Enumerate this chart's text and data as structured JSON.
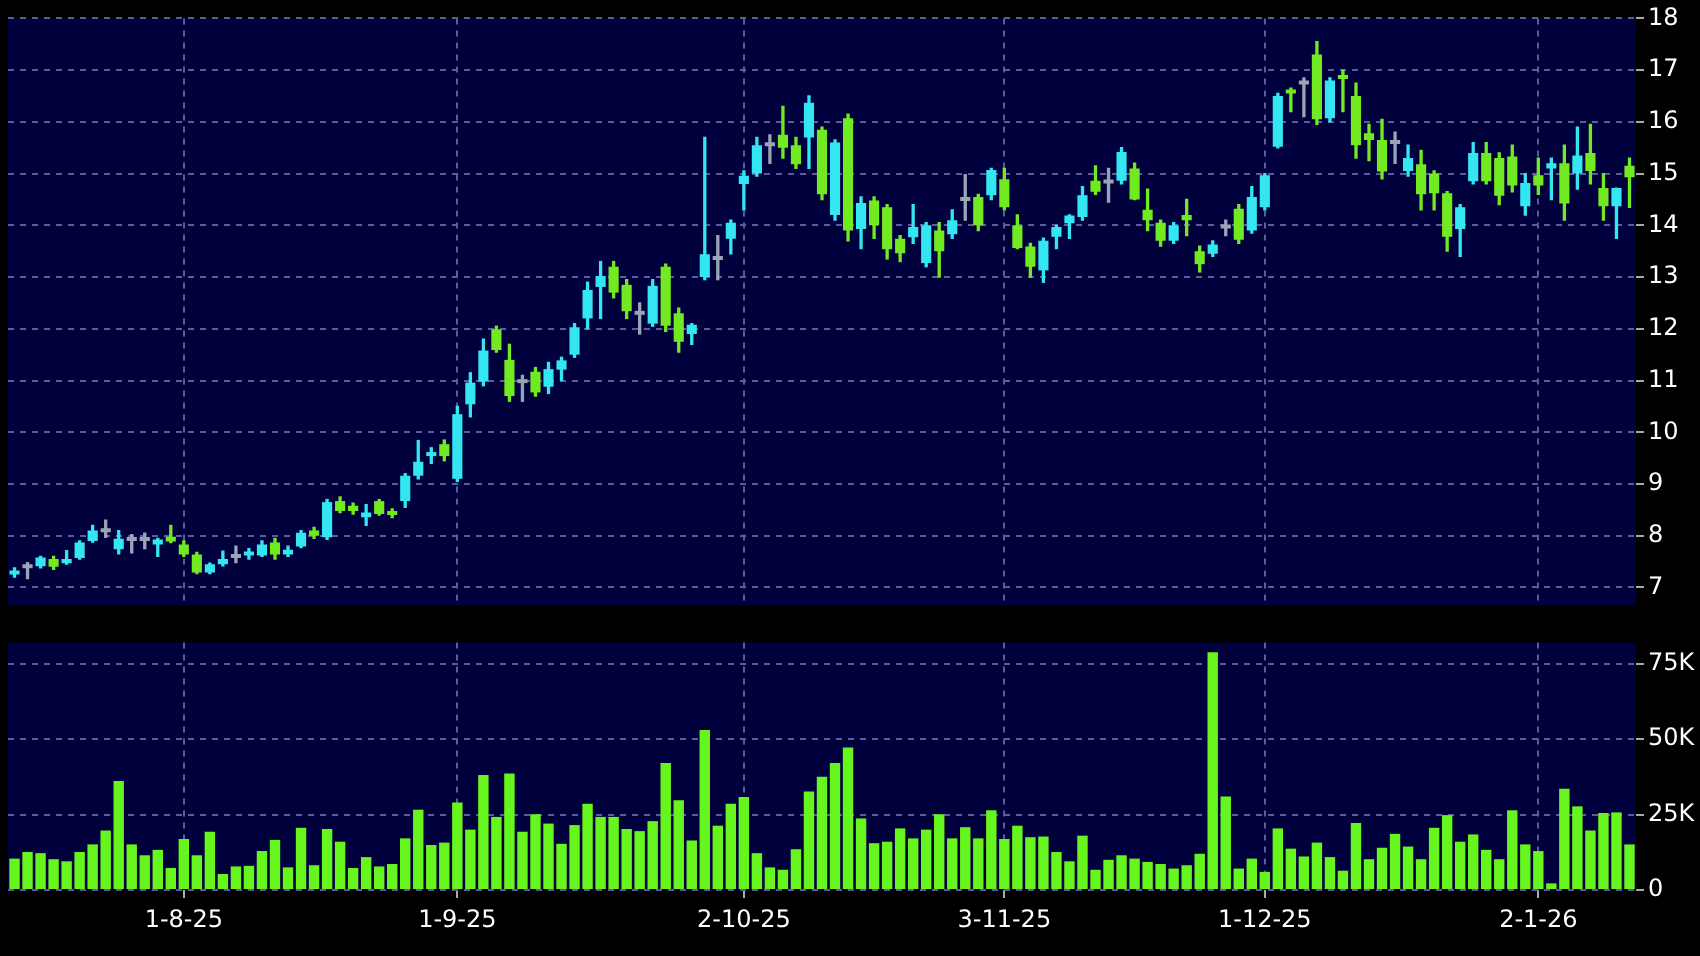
{
  "chart_data": [
    {
      "type": "candlestick",
      "categories": [
        null,
        null,
        null,
        null,
        null,
        null,
        null,
        null,
        null,
        null,
        null,
        null,
        null,
        null,
        null,
        null,
        null,
        null,
        null,
        null,
        null,
        null,
        null,
        null,
        null,
        null,
        null,
        null,
        null,
        null,
        null,
        null,
        null,
        null,
        null,
        null,
        null,
        null,
        null,
        null,
        null,
        null,
        null,
        null,
        null,
        null,
        null,
        null,
        null,
        null,
        null,
        null,
        null,
        null,
        null,
        null,
        null,
        null,
        null,
        null,
        null,
        null,
        null,
        null,
        null,
        null,
        null,
        null,
        null,
        null,
        null,
        null,
        null,
        null,
        null,
        null,
        null,
        null,
        null,
        null,
        null,
        null,
        null,
        null,
        null,
        null,
        null,
        null,
        null,
        null,
        null,
        null,
        null,
        null,
        null,
        null,
        null,
        null,
        null,
        null,
        null,
        null,
        null,
        null,
        null,
        null,
        null,
        null,
        null,
        null,
        null,
        null,
        null,
        null,
        null,
        null,
        null,
        null,
        null,
        null,
        null,
        null,
        null,
        null,
        null
      ],
      "ohlc": [
        [
          7.25,
          7.38,
          7.2,
          7.33
        ],
        [
          7.4,
          7.48,
          7.17,
          7.37
        ],
        [
          7.41,
          7.6,
          7.38,
          7.58
        ],
        [
          7.55,
          7.6,
          7.35,
          7.4
        ],
        [
          7.47,
          7.71,
          7.45,
          7.55
        ],
        [
          7.57,
          7.9,
          7.55,
          7.87
        ],
        [
          7.9,
          8.2,
          7.88,
          8.1
        ],
        [
          8.1,
          8.3,
          7.97,
          8.07
        ],
        [
          7.74,
          8.1,
          7.65,
          7.94
        ],
        [
          7.93,
          8.02,
          7.67,
          7.9
        ],
        [
          7.93,
          8.05,
          7.75,
          7.9
        ],
        [
          7.83,
          7.95,
          7.6,
          7.93
        ],
        [
          7.98,
          8.2,
          7.87,
          7.89
        ],
        [
          7.83,
          7.9,
          7.6,
          7.64
        ],
        [
          7.64,
          7.68,
          7.27,
          7.29
        ],
        [
          7.29,
          7.47,
          7.27,
          7.45
        ],
        [
          7.45,
          7.7,
          7.42,
          7.55
        ],
        [
          7.6,
          7.8,
          7.48,
          7.57
        ],
        [
          7.62,
          7.75,
          7.55,
          7.67
        ],
        [
          7.62,
          7.9,
          7.6,
          7.83
        ],
        [
          7.87,
          7.95,
          7.55,
          7.64
        ],
        [
          7.64,
          7.8,
          7.6,
          7.73
        ],
        [
          7.79,
          8.1,
          7.77,
          8.06
        ],
        [
          8.1,
          8.16,
          7.95,
          8.0
        ],
        [
          7.97,
          8.7,
          7.93,
          8.65
        ],
        [
          8.67,
          8.75,
          8.45,
          8.48
        ],
        [
          8.58,
          8.63,
          8.42,
          8.48
        ],
        [
          8.36,
          8.6,
          8.2,
          8.45
        ],
        [
          8.67,
          8.7,
          8.4,
          8.42
        ],
        [
          8.48,
          8.52,
          8.35,
          8.4
        ],
        [
          8.67,
          9.2,
          8.55,
          9.16
        ],
        [
          9.16,
          9.84,
          9.1,
          9.43
        ],
        [
          9.54,
          9.7,
          9.4,
          9.6
        ],
        [
          9.77,
          9.85,
          9.45,
          9.54
        ],
        [
          9.1,
          10.5,
          9.05,
          10.35
        ],
        [
          10.54,
          11.15,
          10.3,
          10.96
        ],
        [
          10.98,
          11.8,
          10.9,
          11.58
        ],
        [
          11.99,
          12.05,
          11.55,
          11.59
        ],
        [
          11.4,
          11.7,
          10.6,
          10.7
        ],
        [
          10.98,
          11.1,
          10.6,
          10.95
        ],
        [
          11.17,
          11.25,
          10.7,
          10.77
        ],
        [
          10.88,
          11.35,
          10.75,
          11.22
        ],
        [
          11.21,
          11.45,
          11.0,
          11.39
        ],
        [
          11.5,
          12.1,
          11.45,
          12.03
        ],
        [
          12.2,
          12.9,
          12.0,
          12.75
        ],
        [
          12.81,
          13.3,
          12.2,
          13.02
        ],
        [
          13.2,
          13.3,
          12.6,
          12.7
        ],
        [
          12.85,
          12.95,
          12.2,
          12.34
        ],
        [
          12.3,
          12.5,
          11.9,
          12.27
        ],
        [
          12.1,
          12.95,
          12.05,
          12.83
        ],
        [
          13.2,
          13.25,
          11.95,
          12.06
        ],
        [
          12.3,
          12.4,
          11.55,
          11.75
        ],
        [
          11.9,
          12.1,
          11.7,
          12.08
        ],
        [
          13.0,
          15.7,
          12.95,
          13.44
        ],
        [
          13.36,
          13.8,
          12.95,
          13.33
        ],
        [
          13.74,
          14.1,
          13.45,
          14.05
        ],
        [
          14.8,
          15.05,
          14.3,
          14.96
        ],
        [
          15.0,
          15.7,
          14.95,
          15.55
        ],
        [
          15.56,
          15.75,
          15.2,
          15.53
        ],
        [
          15.75,
          16.3,
          15.3,
          15.5
        ],
        [
          15.55,
          15.7,
          15.1,
          15.18
        ],
        [
          15.7,
          16.5,
          15.1,
          16.37
        ],
        [
          15.85,
          15.9,
          14.5,
          14.6
        ],
        [
          14.2,
          15.65,
          14.1,
          15.6
        ],
        [
          16.07,
          16.15,
          13.7,
          13.9
        ],
        [
          13.93,
          14.55,
          13.55,
          14.43
        ],
        [
          14.48,
          14.55,
          13.75,
          14.0
        ],
        [
          14.35,
          14.4,
          13.35,
          13.54
        ],
        [
          13.74,
          13.8,
          13.3,
          13.46
        ],
        [
          13.77,
          14.4,
          13.65,
          13.97
        ],
        [
          13.27,
          14.05,
          13.2,
          14.0
        ],
        [
          13.9,
          14.05,
          13.0,
          13.5
        ],
        [
          13.83,
          14.3,
          13.75,
          14.1
        ],
        [
          14.5,
          14.98,
          14.1,
          14.47
        ],
        [
          14.55,
          14.6,
          13.9,
          14.0
        ],
        [
          14.58,
          15.1,
          14.5,
          15.07
        ],
        [
          14.89,
          15.1,
          14.3,
          14.35
        ],
        [
          14.0,
          14.2,
          13.55,
          13.56
        ],
        [
          13.59,
          13.65,
          13.0,
          13.2
        ],
        [
          13.13,
          13.75,
          12.9,
          13.7
        ],
        [
          13.78,
          14.0,
          13.55,
          13.97
        ],
        [
          14.04,
          14.2,
          13.75,
          14.19
        ],
        [
          14.16,
          14.75,
          14.1,
          14.58
        ],
        [
          14.86,
          15.15,
          14.6,
          14.65
        ],
        [
          14.84,
          15.1,
          14.45,
          14.81
        ],
        [
          14.86,
          15.5,
          14.8,
          15.42
        ],
        [
          15.1,
          15.2,
          14.5,
          14.5
        ],
        [
          14.3,
          14.7,
          13.9,
          14.1
        ],
        [
          14.05,
          14.1,
          13.6,
          13.7
        ],
        [
          13.7,
          14.05,
          13.65,
          14.0
        ],
        [
          14.2,
          14.5,
          13.8,
          14.1
        ],
        [
          13.5,
          13.6,
          13.1,
          13.25
        ],
        [
          13.45,
          13.7,
          13.4,
          13.63
        ],
        [
          13.97,
          14.1,
          13.8,
          13.94
        ],
        [
          14.32,
          14.4,
          13.65,
          13.72
        ],
        [
          13.9,
          14.75,
          13.85,
          14.55
        ],
        [
          14.35,
          15.0,
          14.3,
          14.97
        ],
        [
          15.52,
          16.55,
          15.5,
          16.5
        ],
        [
          16.62,
          16.65,
          16.2,
          16.55
        ],
        [
          16.75,
          16.85,
          16.1,
          16.72
        ],
        [
          17.3,
          17.55,
          15.95,
          16.05
        ],
        [
          16.07,
          16.85,
          16.0,
          16.8
        ],
        [
          16.9,
          17.0,
          16.2,
          16.83
        ],
        [
          16.5,
          16.75,
          15.3,
          15.55
        ],
        [
          15.78,
          15.95,
          15.25,
          15.65
        ],
        [
          15.65,
          16.05,
          14.9,
          15.04
        ],
        [
          15.6,
          15.8,
          15.2,
          15.57
        ],
        [
          15.05,
          15.55,
          14.95,
          15.3
        ],
        [
          15.18,
          15.45,
          14.3,
          14.6
        ],
        [
          15.0,
          15.05,
          14.3,
          14.62
        ],
        [
          14.62,
          14.65,
          13.5,
          13.78
        ],
        [
          13.93,
          14.4,
          13.4,
          14.35
        ],
        [
          14.85,
          15.6,
          14.8,
          15.4
        ],
        [
          15.4,
          15.6,
          14.8,
          14.85
        ],
        [
          15.3,
          15.4,
          14.4,
          14.57
        ],
        [
          15.33,
          15.55,
          14.65,
          14.77
        ],
        [
          14.37,
          15.0,
          14.2,
          14.82
        ],
        [
          14.97,
          15.3,
          14.6,
          14.77
        ],
        [
          15.1,
          15.3,
          14.5,
          15.2
        ],
        [
          15.2,
          15.55,
          14.1,
          14.42
        ],
        [
          15.0,
          15.9,
          14.7,
          15.35
        ],
        [
          15.4,
          15.95,
          14.8,
          15.05
        ],
        [
          14.72,
          15.0,
          14.1,
          14.37
        ],
        [
          14.37,
          14.72,
          13.75,
          14.72
        ],
        [
          15.15,
          15.3,
          14.35,
          14.93
        ]
      ],
      "colors": [
        "#33e6f2",
        "#9aa4b4",
        "#33e6f2",
        "#72ea22",
        "#33e6f2",
        "#33e6f2",
        "#33e6f2",
        "#9aa4b4",
        "#33e6f2",
        "#9aa4b4",
        "#9aa4b4",
        "#33e6f2",
        "#72ea22",
        "#72ea22",
        "#72ea22",
        "#33e6f2",
        "#33e6f2",
        "#9aa4b4",
        "#33e6f2",
        "#33e6f2",
        "#72ea22",
        "#33e6f2",
        "#33e6f2",
        "#72ea22",
        "#33e6f2",
        "#72ea22",
        "#72ea22",
        "#33e6f2",
        "#72ea22",
        "#72ea22",
        "#33e6f2",
        "#33e6f2",
        "#33e6f2",
        "#72ea22",
        "#33e6f2",
        "#33e6f2",
        "#33e6f2",
        "#72ea22",
        "#72ea22",
        "#9aa4b4",
        "#72ea22",
        "#33e6f2",
        "#33e6f2",
        "#33e6f2",
        "#33e6f2",
        "#33e6f2",
        "#72ea22",
        "#72ea22",
        "#9aa4b4",
        "#33e6f2",
        "#72ea22",
        "#72ea22",
        "#33e6f2",
        "#33e6f2",
        "#9aa4b4",
        "#33e6f2",
        "#33e6f2",
        "#33e6f2",
        "#9aa4b4",
        "#72ea22",
        "#72ea22",
        "#33e6f2",
        "#72ea22",
        "#33e6f2",
        "#72ea22",
        "#33e6f2",
        "#72ea22",
        "#72ea22",
        "#72ea22",
        "#33e6f2",
        "#33e6f2",
        "#72ea22",
        "#33e6f2",
        "#9aa4b4",
        "#72ea22",
        "#33e6f2",
        "#72ea22",
        "#72ea22",
        "#72ea22",
        "#33e6f2",
        "#33e6f2",
        "#33e6f2",
        "#33e6f2",
        "#72ea22",
        "#9aa4b4",
        "#33e6f2",
        "#72ea22",
        "#72ea22",
        "#72ea22",
        "#33e6f2",
        "#72ea22",
        "#72ea22",
        "#33e6f2",
        "#9aa4b4",
        "#72ea22",
        "#33e6f2",
        "#33e6f2",
        "#33e6f2",
        "#72ea22",
        "#9aa4b4",
        "#72ea22",
        "#33e6f2",
        "#72ea22",
        "#72ea22",
        "#72ea22",
        "#72ea22",
        "#9aa4b4",
        "#33e6f2",
        "#72ea22",
        "#72ea22",
        "#72ea22",
        "#33e6f2",
        "#33e6f2",
        "#72ea22",
        "#72ea22",
        "#72ea22",
        "#33e6f2",
        "#72ea22",
        "#33e6f2",
        "#72ea22",
        "#33e6f2",
        "#72ea22",
        "#72ea22",
        "#33e6f2",
        "#72ea22"
      ],
      "ylim": [
        6.65,
        18
      ],
      "yticks": [
        7,
        8,
        9,
        10,
        11,
        12,
        13,
        14,
        15,
        16,
        17,
        18
      ],
      "grid": true,
      "tick_labels": "y"
    },
    {
      "type": "bar",
      "categories": [
        null,
        null,
        null,
        null,
        null,
        null,
        null,
        null,
        null,
        null,
        null,
        null,
        null,
        "1-8-25",
        null,
        null,
        null,
        null,
        null,
        null,
        null,
        null,
        null,
        null,
        null,
        null,
        null,
        null,
        null,
        null,
        null,
        null,
        null,
        null,
        "1-9-25",
        null,
        null,
        null,
        null,
        null,
        null,
        null,
        null,
        null,
        null,
        null,
        null,
        null,
        null,
        null,
        null,
        null,
        null,
        null,
        null,
        null,
        "2-10-25",
        null,
        null,
        null,
        null,
        null,
        null,
        null,
        null,
        null,
        null,
        null,
        null,
        null,
        null,
        null,
        null,
        null,
        null,
        null,
        "3-11-25",
        null,
        null,
        null,
        null,
        null,
        null,
        null,
        null,
        null,
        null,
        null,
        null,
        null,
        null,
        null,
        null,
        null,
        null,
        null,
        "1-12-25",
        null,
        null,
        null,
        null,
        null,
        null,
        null,
        null,
        null,
        null,
        null,
        null,
        null,
        null,
        null,
        null,
        null,
        null,
        null,
        null,
        "2-1-26",
        null,
        null,
        null,
        null,
        null,
        null,
        null
      ],
      "values": [
        10400,
        12600,
        12200,
        10200,
        9500,
        12600,
        15100,
        19700,
        36100,
        15100,
        11500,
        13300,
        7300,
        16900,
        11500,
        19300,
        5300,
        7800,
        8000,
        12900,
        16600,
        7500,
        20600,
        8200,
        20200,
        16000,
        7300,
        10900,
        7800,
        8600,
        17100,
        26600,
        14900,
        15700,
        29000,
        20000,
        38100,
        24200,
        38600,
        19300,
        25100,
        22000,
        15300,
        21500,
        28600,
        24200,
        24200,
        20200,
        19500,
        22800,
        42100,
        29700,
        16400,
        53000,
        21300,
        28600,
        30800,
        12200,
        7500,
        6700,
        13500,
        32600,
        37500,
        42100,
        47200,
        23700,
        15500,
        16000,
        20400,
        17100,
        20000,
        25100,
        17100,
        20800,
        17100,
        26400,
        16900,
        21300,
        17500,
        17700,
        12600,
        9500,
        18000,
        6700,
        10000,
        11500,
        10400,
        9300,
        8600,
        7100,
        8200,
        12000,
        78700,
        31000,
        7100,
        10400,
        6000,
        20400,
        13700,
        11100,
        15700,
        10900,
        6400,
        22200,
        10200,
        14000,
        18600,
        14400,
        10200,
        20600,
        24800,
        16000,
        18400,
        13300,
        10200,
        26400,
        15100,
        12900,
        2200,
        33500,
        27700,
        19700,
        25500,
        25700,
        15100
      ],
      "color": "#66f51c",
      "ylim": [
        0,
        82000
      ],
      "yticks": [
        0,
        {
          "value": 25000,
          "label": "25K"
        },
        {
          "value": 50000,
          "label": "50K"
        },
        {
          "value": 75000,
          "label": "75K"
        }
      ],
      "grid": true
    }
  ]
}
